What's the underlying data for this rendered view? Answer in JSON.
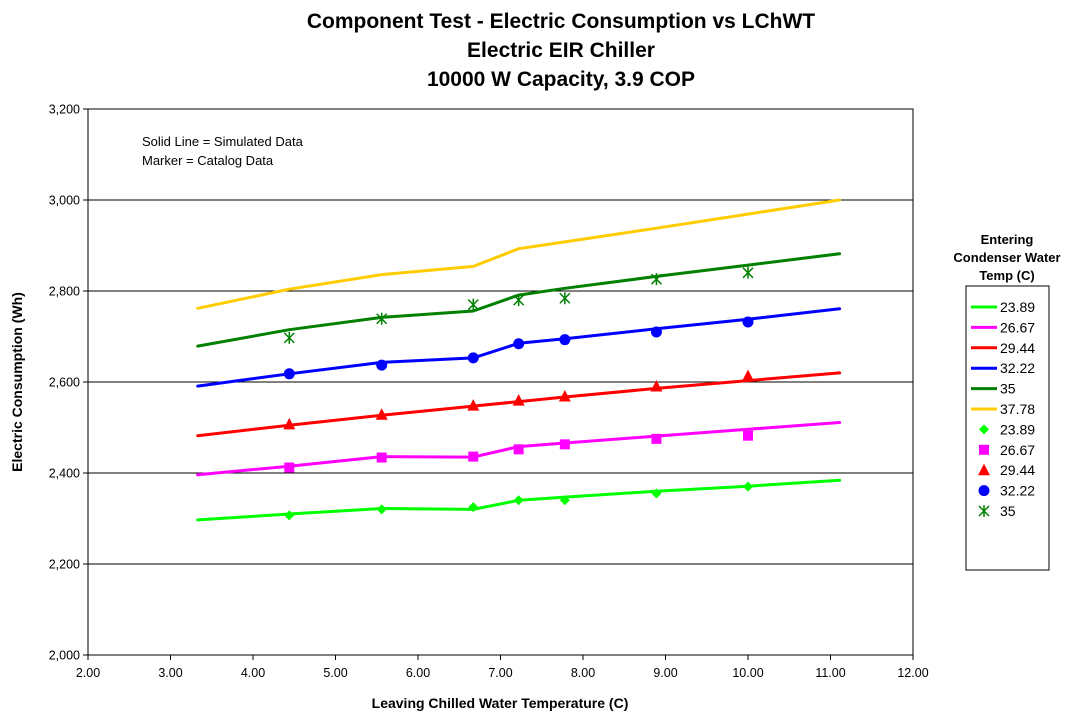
{
  "chart_data": {
    "type": "line",
    "title": [
      "Component Test - Electric Consumption vs LChWT",
      "Electric EIR Chiller",
      "10000 W Capacity, 3.9 COP"
    ],
    "xlabel": "Leaving Chilled Water Temperature (C)",
    "ylabel": "Electric Consumption (Wh)",
    "xlim": [
      2.0,
      12.0
    ],
    "ylim": [
      2000,
      3200
    ],
    "xticks": [
      "2.00",
      "3.00",
      "4.00",
      "5.00",
      "6.00",
      "7.00",
      "8.00",
      "9.00",
      "10.00",
      "11.00",
      "12.00"
    ],
    "yticks": [
      "2,000",
      "2,200",
      "2,400",
      "2,600",
      "2,800",
      "3,000",
      "3,200"
    ],
    "grid": "horizontal",
    "annotations": [
      "Solid Line = Simulated Data",
      "Marker = Catalog Data"
    ],
    "legend_title": [
      "Entering",
      "Condenser Water",
      "Temp (C)"
    ],
    "legend_position": "right",
    "line_series": [
      {
        "name": "23.89",
        "color": "#00ff00",
        "x": [
          3.33,
          4.44,
          5.56,
          6.67,
          7.22,
          7.78,
          8.89,
          10.0,
          11.11
        ],
        "y": [
          2297,
          2310,
          2322,
          2320,
          2340,
          2347,
          2360,
          2371,
          2384
        ]
      },
      {
        "name": "26.67",
        "color": "#ff00ff",
        "x": [
          3.33,
          4.44,
          5.56,
          6.67,
          7.22,
          7.78,
          8.89,
          10.0,
          11.11
        ],
        "y": [
          2396,
          2415,
          2436,
          2435,
          2458,
          2466,
          2481,
          2496,
          2511
        ]
      },
      {
        "name": "29.44",
        "color": "#ff0000",
        "x": [
          3.33,
          4.44,
          5.56,
          6.67,
          7.22,
          7.78,
          8.89,
          10.0,
          11.11
        ],
        "y": [
          2482,
          2505,
          2527,
          2547,
          2557,
          2567,
          2586,
          2603,
          2620
        ]
      },
      {
        "name": "32.22",
        "color": "#0000ff",
        "x": [
          3.33,
          4.44,
          5.56,
          6.67,
          7.22,
          7.78,
          8.89,
          10.0,
          11.11
        ],
        "y": [
          2591,
          2618,
          2643,
          2653,
          2685,
          2695,
          2717,
          2738,
          2761
        ]
      },
      {
        "name": "35",
        "color": "#008000",
        "x": [
          3.33,
          4.44,
          5.56,
          6.67,
          7.22,
          7.78,
          8.89,
          10.0,
          11.11
        ],
        "y": [
          2679,
          2715,
          2742,
          2756,
          2791,
          2806,
          2832,
          2857,
          2882
        ]
      },
      {
        "name": "37.78",
        "color": "#ffcc00",
        "x": [
          3.33,
          4.44,
          5.56,
          6.67,
          7.22,
          7.78,
          8.89,
          10.0,
          11.11
        ],
        "y": [
          2762,
          2804,
          2836,
          2854,
          2893,
          2908,
          2938,
          2969,
          3000
        ]
      }
    ],
    "marker_series": [
      {
        "name": "23.89",
        "color": "#00ff00",
        "marker": "diamond",
        "x": [
          4.44,
          5.56,
          6.67,
          7.22,
          7.78,
          8.89,
          10.0
        ],
        "y": [
          2307,
          2320,
          2325,
          2340,
          2340,
          2355,
          2370
        ]
      },
      {
        "name": "26.67",
        "color": "#ff00ff",
        "marker": "square",
        "x": [
          4.44,
          5.56,
          6.67,
          7.22,
          7.78,
          8.89,
          10.0
        ],
        "y": [
          2412,
          2434,
          2436,
          2452,
          2463,
          2475,
          2482
        ]
      },
      {
        "name": "29.44",
        "color": "#ff0000",
        "marker": "triangle",
        "x": [
          4.44,
          5.56,
          6.67,
          7.22,
          7.78,
          8.89,
          10.0
        ],
        "y": [
          2507,
          2528,
          2548,
          2559,
          2568,
          2590,
          2613
        ]
      },
      {
        "name": "32.22",
        "color": "#0000ff",
        "marker": "circle",
        "x": [
          4.44,
          5.56,
          6.67,
          7.22,
          7.78,
          8.89,
          10.0
        ],
        "y": [
          2618,
          2637,
          2653,
          2684,
          2693,
          2710,
          2732
        ]
      },
      {
        "name": "35",
        "color": "#008000",
        "marker": "asterisk",
        "x": [
          4.44,
          5.56,
          6.67,
          7.22,
          7.78,
          8.89,
          10.0
        ],
        "y": [
          2697,
          2739,
          2770,
          2780,
          2784,
          2826,
          2840
        ]
      }
    ]
  }
}
